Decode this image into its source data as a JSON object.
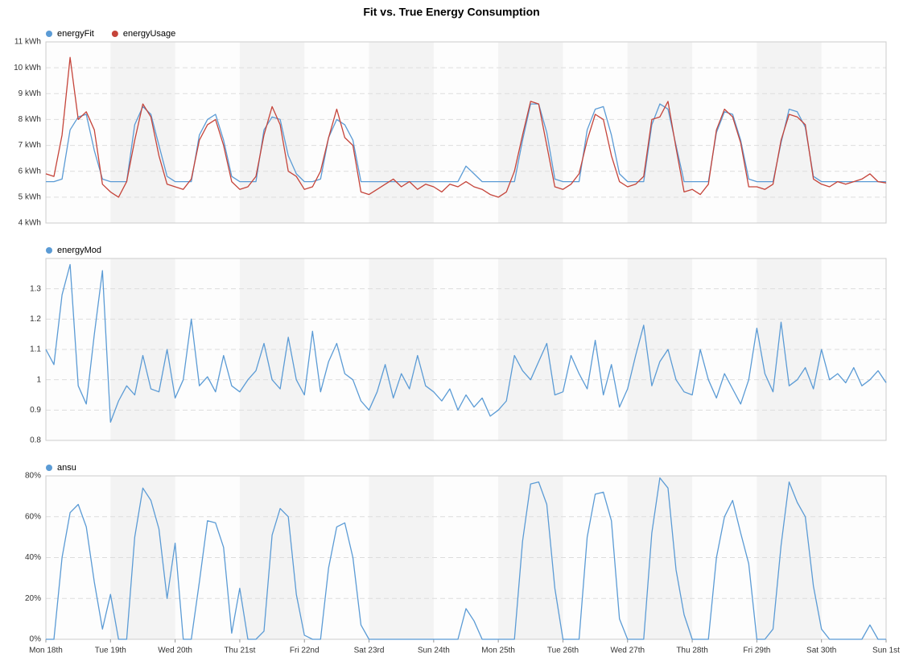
{
  "chart_data": [
    {
      "type": "line",
      "title": "Fit vs. True Energy Consumption",
      "x": [
        0,
        3,
        6,
        9,
        12,
        15,
        18,
        21,
        24,
        27,
        30,
        33,
        36,
        39,
        42,
        45,
        48,
        51,
        54,
        57,
        60,
        63,
        66,
        69,
        72,
        75,
        78,
        81,
        84,
        87,
        90,
        93,
        96,
        99,
        102,
        105,
        108,
        111,
        114,
        117,
        120,
        123,
        126,
        129,
        132,
        135,
        138,
        141,
        144,
        147,
        150,
        153,
        156,
        159,
        162,
        165,
        168,
        171,
        174,
        177,
        180,
        183,
        186,
        189,
        192,
        195,
        198,
        201,
        204,
        207,
        210,
        213,
        216,
        219,
        222,
        225,
        228,
        231,
        234,
        237,
        240,
        243,
        246,
        249,
        252,
        255,
        258,
        261,
        264,
        267,
        270,
        273,
        276,
        279,
        282,
        285,
        288,
        291,
        294,
        297,
        300,
        303,
        306,
        309,
        312
      ],
      "xlim": [
        0,
        312
      ],
      "ylim": [
        4,
        11
      ],
      "yticks": [
        {
          "value": 4,
          "label": "4 kWh"
        },
        {
          "value": 5,
          "label": "5 kWh"
        },
        {
          "value": 6,
          "label": "6 kWh"
        },
        {
          "value": 7,
          "label": "7 kWh"
        },
        {
          "value": 8,
          "label": "8 kWh"
        },
        {
          "value": 9,
          "label": "9 kWh"
        },
        {
          "value": 10,
          "label": "10 kWh"
        },
        {
          "value": 11,
          "label": "11 kWh"
        }
      ],
      "grid": true,
      "series": [
        {
          "name": "energyFit",
          "color": "#5b9bd5",
          "values": [
            5.6,
            5.6,
            5.7,
            7.6,
            8.1,
            8.2,
            6.8,
            5.7,
            5.6,
            5.6,
            5.6,
            7.8,
            8.5,
            8.2,
            7.0,
            5.8,
            5.6,
            5.6,
            5.6,
            7.4,
            8.0,
            8.2,
            7.2,
            5.8,
            5.6,
            5.6,
            5.6,
            7.6,
            8.1,
            8.0,
            6.6,
            5.9,
            5.6,
            5.6,
            5.7,
            7.3,
            8.0,
            7.8,
            7.2,
            5.6,
            5.6,
            5.6,
            5.6,
            5.6,
            5.6,
            5.6,
            5.6,
            5.6,
            5.6,
            5.6,
            5.6,
            5.6,
            6.2,
            5.9,
            5.6,
            5.6,
            5.6,
            5.6,
            5.6,
            7.2,
            8.6,
            8.6,
            7.5,
            5.7,
            5.6,
            5.6,
            5.6,
            7.6,
            8.4,
            8.5,
            7.4,
            5.9,
            5.6,
            5.6,
            5.6,
            7.8,
            8.6,
            8.4,
            7.0,
            5.6,
            5.6,
            5.6,
            5.6,
            7.5,
            8.3,
            8.2,
            7.2,
            5.7,
            5.6,
            5.6,
            5.6,
            7.1,
            8.4,
            8.3,
            7.7,
            5.8,
            5.6,
            5.6,
            5.6,
            5.6,
            5.6,
            5.6,
            5.6,
            5.6,
            5.6
          ]
        },
        {
          "name": "energyUsage",
          "color": "#c5443a",
          "values": [
            5.9,
            5.8,
            7.4,
            10.4,
            8.0,
            8.3,
            7.6,
            5.5,
            5.2,
            5.0,
            5.6,
            7.2,
            8.6,
            8.1,
            6.6,
            5.5,
            5.4,
            5.3,
            5.7,
            7.2,
            7.8,
            8.0,
            7.0,
            5.6,
            5.3,
            5.4,
            5.8,
            7.4,
            8.5,
            7.8,
            6.0,
            5.8,
            5.3,
            5.4,
            6.0,
            7.3,
            8.4,
            7.3,
            7.0,
            5.2,
            5.1,
            5.3,
            5.5,
            5.7,
            5.4,
            5.6,
            5.3,
            5.5,
            5.4,
            5.2,
            5.5,
            5.4,
            5.6,
            5.4,
            5.3,
            5.1,
            5.0,
            5.2,
            6.0,
            7.4,
            8.7,
            8.6,
            7.0,
            5.4,
            5.3,
            5.5,
            5.9,
            7.2,
            8.2,
            8.0,
            6.6,
            5.6,
            5.4,
            5.5,
            5.8,
            8.0,
            8.1,
            8.7,
            6.9,
            5.2,
            5.3,
            5.1,
            5.5,
            7.6,
            8.4,
            8.1,
            7.1,
            5.4,
            5.4,
            5.3,
            5.5,
            7.2,
            8.2,
            8.1,
            7.8,
            5.7,
            5.5,
            5.4,
            5.6,
            5.5,
            5.6,
            5.7,
            5.9,
            5.6,
            5.55
          ]
        }
      ]
    },
    {
      "type": "line",
      "x": [
        0,
        3,
        6,
        9,
        12,
        15,
        18,
        21,
        24,
        27,
        30,
        33,
        36,
        39,
        42,
        45,
        48,
        51,
        54,
        57,
        60,
        63,
        66,
        69,
        72,
        75,
        78,
        81,
        84,
        87,
        90,
        93,
        96,
        99,
        102,
        105,
        108,
        111,
        114,
        117,
        120,
        123,
        126,
        129,
        132,
        135,
        138,
        141,
        144,
        147,
        150,
        153,
        156,
        159,
        162,
        165,
        168,
        171,
        174,
        177,
        180,
        183,
        186,
        189,
        192,
        195,
        198,
        201,
        204,
        207,
        210,
        213,
        216,
        219,
        222,
        225,
        228,
        231,
        234,
        237,
        240,
        243,
        246,
        249,
        252,
        255,
        258,
        261,
        264,
        267,
        270,
        273,
        276,
        279,
        282,
        285,
        288,
        291,
        294,
        297,
        300,
        303,
        306,
        309,
        312
      ],
      "xlim": [
        0,
        312
      ],
      "ylim": [
        0.8,
        1.4
      ],
      "yticks": [
        0.8,
        0.9,
        1,
        1.1,
        1.2,
        1.3
      ],
      "grid": true,
      "series": [
        {
          "name": "energyMod",
          "color": "#5b9bd5",
          "values": [
            1.1,
            1.05,
            1.28,
            1.38,
            0.98,
            0.92,
            1.15,
            1.36,
            0.86,
            0.93,
            0.98,
            0.95,
            1.08,
            0.97,
            0.96,
            1.1,
            0.94,
            1.0,
            1.2,
            0.98,
            1.01,
            0.96,
            1.08,
            0.98,
            0.96,
            1.0,
            1.03,
            1.12,
            1.0,
            0.97,
            1.14,
            1.0,
            0.95,
            1.16,
            0.96,
            1.06,
            1.12,
            1.02,
            1.0,
            0.93,
            0.9,
            0.96,
            1.05,
            0.94,
            1.02,
            0.97,
            1.08,
            0.98,
            0.96,
            0.93,
            0.97,
            0.9,
            0.95,
            0.91,
            0.94,
            0.88,
            0.9,
            0.93,
            1.08,
            1.03,
            1.0,
            1.06,
            1.12,
            0.95,
            0.96,
            1.08,
            1.02,
            0.97,
            1.13,
            0.95,
            1.05,
            0.91,
            0.97,
            1.08,
            1.18,
            0.98,
            1.06,
            1.1,
            1.0,
            0.96,
            0.95,
            1.1,
            1.0,
            0.94,
            1.02,
            0.97,
            0.92,
            1.0,
            1.17,
            1.02,
            0.96,
            1.19,
            0.98,
            1.0,
            1.04,
            0.97,
            1.1,
            1.0,
            1.02,
            0.99,
            1.04,
            0.98,
            1.0,
            1.03,
            0.99
          ]
        }
      ]
    },
    {
      "type": "line",
      "x": [
        0,
        3,
        6,
        9,
        12,
        15,
        18,
        21,
        24,
        27,
        30,
        33,
        36,
        39,
        42,
        45,
        48,
        51,
        54,
        57,
        60,
        63,
        66,
        69,
        72,
        75,
        78,
        81,
        84,
        87,
        90,
        93,
        96,
        99,
        102,
        105,
        108,
        111,
        114,
        117,
        120,
        123,
        126,
        129,
        132,
        135,
        138,
        141,
        144,
        147,
        150,
        153,
        156,
        159,
        162,
        165,
        168,
        171,
        174,
        177,
        180,
        183,
        186,
        189,
        192,
        195,
        198,
        201,
        204,
        207,
        210,
        213,
        216,
        219,
        222,
        225,
        228,
        231,
        234,
        237,
        240,
        243,
        246,
        249,
        252,
        255,
        258,
        261,
        264,
        267,
        270,
        273,
        276,
        279,
        282,
        285,
        288,
        291,
        294,
        297,
        300,
        303,
        306,
        309,
        312
      ],
      "xlim": [
        0,
        312
      ],
      "xticks": [
        {
          "value": 0,
          "label": "Mon 18th"
        },
        {
          "value": 24,
          "label": "Tue 19th"
        },
        {
          "value": 48,
          "label": "Wed 20th"
        },
        {
          "value": 72,
          "label": "Thu 21st"
        },
        {
          "value": 96,
          "label": "Fri 22nd"
        },
        {
          "value": 120,
          "label": "Sat 23rd"
        },
        {
          "value": 144,
          "label": "Sun 24th"
        },
        {
          "value": 168,
          "label": "Mon 25th"
        },
        {
          "value": 192,
          "label": "Tue 26th"
        },
        {
          "value": 216,
          "label": "Wed 27th"
        },
        {
          "value": 240,
          "label": "Thu 28th"
        },
        {
          "value": 264,
          "label": "Fri 29th"
        },
        {
          "value": 288,
          "label": "Sat 30th"
        },
        {
          "value": 312,
          "label": "Sun 1st"
        }
      ],
      "ylim": [
        0,
        80
      ],
      "yticks": [
        {
          "value": 0,
          "label": "0%"
        },
        {
          "value": 20,
          "label": "20%"
        },
        {
          "value": 40,
          "label": "40%"
        },
        {
          "value": 60,
          "label": "60%"
        },
        {
          "value": 80,
          "label": "80%"
        }
      ],
      "grid": true,
      "series": [
        {
          "name": "ansu",
          "color": "#5b9bd5",
          "values": [
            0,
            0,
            40,
            62,
            66,
            55,
            28,
            5,
            22,
            0,
            0,
            50,
            74,
            68,
            54,
            20,
            47,
            0,
            0,
            28,
            58,
            57,
            45,
            3,
            25,
            0,
            0,
            4,
            51,
            64,
            60,
            22,
            2,
            0,
            0,
            35,
            55,
            57,
            40,
            7,
            0,
            0,
            0,
            0,
            0,
            0,
            0,
            0,
            0,
            0,
            0,
            0,
            15,
            9,
            0,
            0,
            0,
            0,
            0,
            48,
            76,
            77,
            66,
            25,
            0,
            0,
            0,
            50,
            71,
            72,
            58,
            10,
            0,
            0,
            0,
            52,
            79,
            74,
            34,
            12,
            0,
            0,
            0,
            40,
            60,
            68,
            52,
            37,
            0,
            0,
            5,
            46,
            77,
            67,
            60,
            26,
            5,
            0,
            0,
            0,
            0,
            0,
            7,
            0,
            0
          ]
        }
      ]
    }
  ]
}
